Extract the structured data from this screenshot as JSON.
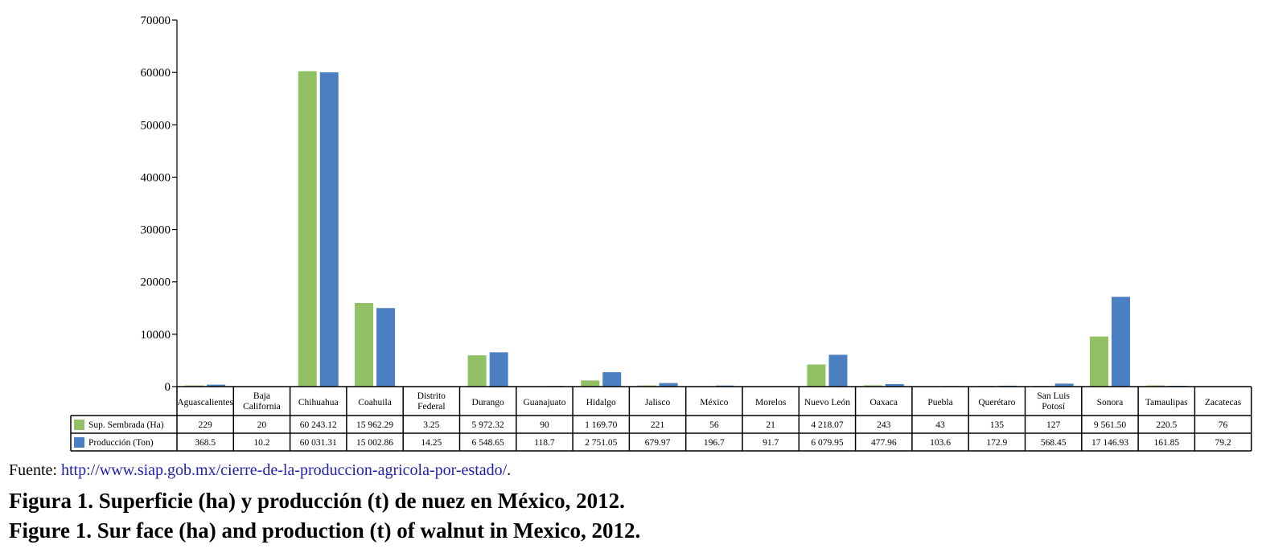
{
  "chart_data": {
    "type": "bar",
    "title": "",
    "xlabel": "",
    "ylabel": "",
    "ylim": [
      0,
      70000
    ],
    "yticks": [
      "0",
      "10000",
      "20000",
      "30000",
      "40000",
      "50000",
      "60000",
      "70000"
    ],
    "legend_placement": "data-table-left",
    "categories": [
      "Aguascalientes",
      "Baja California",
      "Chihuahua",
      "Coahuila",
      "Distrito Federal",
      "Durango",
      "Guanajuato",
      "Hidalgo",
      "Jalisco",
      "México",
      "Morelos",
      "Nuevo León",
      "Oaxaca",
      "Puebla",
      "Querétaro",
      "San Luis Potosí",
      "Sonora",
      "Tamaulipas",
      "Zacatecas"
    ],
    "category_lines": [
      [
        "Aguascalientes"
      ],
      [
        "Baja",
        "California"
      ],
      [
        "Chihuahua"
      ],
      [
        "Coahuila"
      ],
      [
        "Distrito",
        "Federal"
      ],
      [
        "Durango"
      ],
      [
        "Guanajuato"
      ],
      [
        "Hidalgo"
      ],
      [
        "Jalisco"
      ],
      [
        "México"
      ],
      [
        "Morelos"
      ],
      [
        "Nuevo León"
      ],
      [
        "Oaxaca"
      ],
      [
        "Puebla"
      ],
      [
        "Querétaro"
      ],
      [
        "San Luis",
        "Potosí"
      ],
      [
        "Sonora"
      ],
      [
        "Tamaulipas"
      ],
      [
        "Zacatecas"
      ]
    ],
    "series": [
      {
        "name": "Sup. Sembrada (Ha)",
        "color": "#92c064",
        "values": [
          229,
          20,
          60243.12,
          15962.29,
          3.25,
          5972.32,
          90,
          1169.7,
          221,
          56,
          21,
          4218.07,
          243,
          43,
          135,
          127,
          9561.5,
          220.5,
          76
        ],
        "labels": [
          "229",
          "20",
          "60 243.12",
          "15 962.29",
          "3.25",
          "5 972.32",
          "90",
          "1 169.70",
          "221",
          "56",
          "21",
          "4 218.07",
          "243",
          "43",
          "135",
          "127",
          "9 561.50",
          "220.5",
          "76"
        ]
      },
      {
        "name": "Producción (Ton)",
        "color": "#4a7fc1",
        "values": [
          368.5,
          10.2,
          60031.31,
          15002.86,
          14.25,
          6548.65,
          118.7,
          2751.05,
          679.97,
          196.7,
          91.7,
          6079.95,
          477.96,
          103.6,
          172.9,
          568.45,
          17146.93,
          161.85,
          79.2
        ],
        "labels": [
          "368.5",
          "10.2",
          "60 031.31",
          "15 002.86",
          "14.25",
          "6 548.65",
          "118.7",
          "2 751.05",
          "679.97",
          "196.7",
          "91.7",
          "6 079.95",
          "477.96",
          "103.6",
          "172.9",
          "568.45",
          "17 146.93",
          "161.85",
          "79.2"
        ]
      }
    ]
  },
  "source": {
    "prefix": "Fuente: ",
    "link": "http://www.siap.gob.mx/cierre-de-la-produccion-agricola-por-estado/",
    "suffix": "."
  },
  "caption_es": "Figura 1. Superficie (ha) y producción (t) de nuez en México, 2012.",
  "caption_en": "Figure 1. Sur face (ha) and production (t) of walnut in Mexico, 2012."
}
